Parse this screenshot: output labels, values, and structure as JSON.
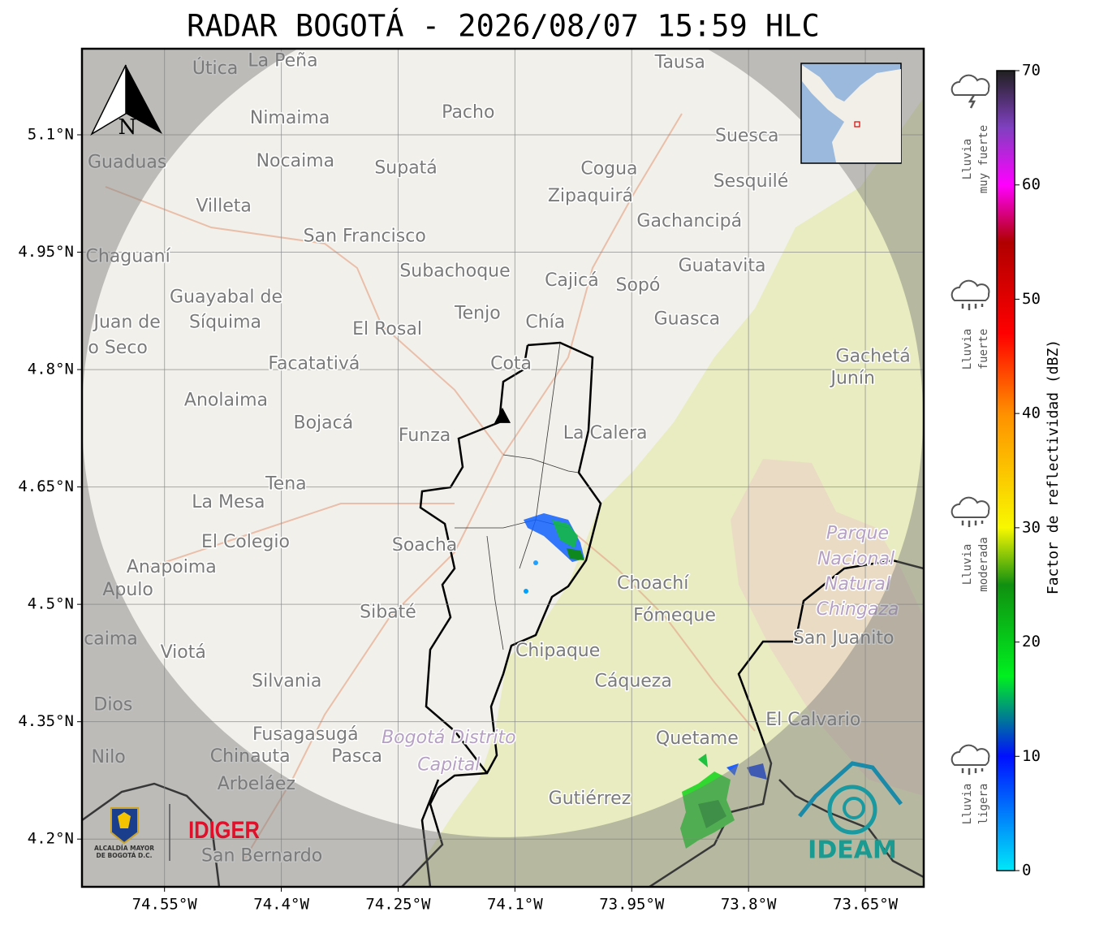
{
  "title": "RADAR BOGOTÁ - 2026/08/07 15:59 HLC",
  "map": {
    "lonlim": [
      -74.656,
      -73.575
    ],
    "latlim": [
      4.139,
      5.21
    ],
    "grid": true,
    "north_label": "N",
    "lat_ticks": [
      {
        "value": 5.1,
        "label": "5.1°N"
      },
      {
        "value": 4.95,
        "label": "4.95°N"
      },
      {
        "value": 4.8,
        "label": "4.8°N"
      },
      {
        "value": 4.65,
        "label": "4.65°N"
      },
      {
        "value": 4.5,
        "label": "4.5°N"
      },
      {
        "value": 4.35,
        "label": "4.35°N"
      },
      {
        "value": 4.2,
        "label": "4.2°N"
      }
    ],
    "lon_ticks": [
      {
        "value": -74.55,
        "label": "74.55°W"
      },
      {
        "value": -74.4,
        "label": "74.4°W"
      },
      {
        "value": -74.25,
        "label": "74.25°W"
      },
      {
        "value": -74.1,
        "label": "74.1°W"
      },
      {
        "value": -73.95,
        "label": "73.95°W"
      },
      {
        "value": -73.8,
        "label": "73.8°W"
      },
      {
        "value": -73.65,
        "label": "73.65°W"
      }
    ],
    "radar_site": {
      "lon": -74.116,
      "lat": 4.74
    },
    "places": [
      {
        "name": "Útica",
        "lon": -74.485,
        "lat": 5.184
      },
      {
        "name": "La Peña",
        "lon": -74.398,
        "lat": 5.194
      },
      {
        "name": "Tausa",
        "lon": -73.888,
        "lat": 5.192
      },
      {
        "name": "Pacho",
        "lon": -74.16,
        "lat": 5.128
      },
      {
        "name": "Nimaima",
        "lon": -74.389,
        "lat": 5.121
      },
      {
        "name": "Guaduas",
        "lon": -74.598,
        "lat": 5.064
      },
      {
        "name": "Nocaima",
        "lon": -74.382,
        "lat": 5.066
      },
      {
        "name": "Supatá",
        "lon": -74.24,
        "lat": 5.057
      },
      {
        "name": "Cogua",
        "lon": -73.979,
        "lat": 5.056
      },
      {
        "name": "Suesca",
        "lon": -73.802,
        "lat": 5.098
      },
      {
        "name": "Sesquilé",
        "lon": -73.797,
        "lat": 5.04
      },
      {
        "name": "Zipaquirá",
        "lon": -74.003,
        "lat": 5.021
      },
      {
        "name": "Villeta",
        "lon": -74.474,
        "lat": 5.008
      },
      {
        "name": "Gachancipá",
        "lon": -73.876,
        "lat": 4.989
      },
      {
        "name": "San Francisco",
        "lon": -74.293,
        "lat": 4.97
      },
      {
        "name": "Chaguaní",
        "lon": -74.597,
        "lat": 4.944
      },
      {
        "name": "Guatavita",
        "lon": -73.834,
        "lat": 4.932
      },
      {
        "name": "Subachoque",
        "lon": -74.177,
        "lat": 4.925
      },
      {
        "name": "Cajicá",
        "lon": -74.027,
        "lat": 4.913
      },
      {
        "name": "Sopó",
        "lon": -73.942,
        "lat": 4.907
      },
      {
        "name": "Guayabal de",
        "lon": -74.471,
        "lat": 4.892
      },
      {
        "name": "Síquima",
        "lon": -74.472,
        "lat": 4.86
      },
      {
        "name": "Juan de",
        "lon": -74.598,
        "lat": 4.86
      },
      {
        "name": "o Seco",
        "lon": -74.61,
        "lat": 4.827
      },
      {
        "name": "Tenjo",
        "lon": -74.148,
        "lat": 4.871
      },
      {
        "name": "Chía",
        "lon": -74.061,
        "lat": 4.86
      },
      {
        "name": "El Rosal",
        "lon": -74.264,
        "lat": 4.851
      },
      {
        "name": "Guasca",
        "lon": -73.879,
        "lat": 4.864
      },
      {
        "name": "Facatativá",
        "lon": -74.358,
        "lat": 4.807
      },
      {
        "name": "Cota",
        "lon": -74.105,
        "lat": 4.807
      },
      {
        "name": "Gachetá",
        "lon": -73.64,
        "lat": 4.816
      },
      {
        "name": "Junín",
        "lon": -73.666,
        "lat": 4.788
      },
      {
        "name": "Anolaima",
        "lon": -74.471,
        "lat": 4.76
      },
      {
        "name": "Bojacá",
        "lon": -74.346,
        "lat": 4.731
      },
      {
        "name": "Funza",
        "lon": -74.216,
        "lat": 4.715
      },
      {
        "name": "La Calera",
        "lon": -73.984,
        "lat": 4.718
      },
      {
        "name": "Tena",
        "lon": -74.394,
        "lat": 4.653
      },
      {
        "name": "La Mesa",
        "lon": -74.468,
        "lat": 4.63
      },
      {
        "name": "Parque",
        "lon": -73.66,
        "lat": 4.59,
        "italic": true
      },
      {
        "name": "Nacional",
        "lon": -73.662,
        "lat": 4.557,
        "italic": true
      },
      {
        "name": "Natural",
        "lon": -73.66,
        "lat": 4.525,
        "italic": true
      },
      {
        "name": "Chingaza",
        "lon": -73.66,
        "lat": 4.493,
        "italic": true
      },
      {
        "name": "El Colegio",
        "lon": -74.446,
        "lat": 4.579
      },
      {
        "name": "Soacha",
        "lon": -74.216,
        "lat": 4.575
      },
      {
        "name": "Anapoima",
        "lon": -74.541,
        "lat": 4.547
      },
      {
        "name": "Apulo",
        "lon": -74.597,
        "lat": 4.518
      },
      {
        "name": "Choachí",
        "lon": -73.923,
        "lat": 4.526
      },
      {
        "name": "Fómeque",
        "lon": -73.895,
        "lat": 4.485
      },
      {
        "name": "Sibaté",
        "lon": -74.263,
        "lat": 4.489
      },
      {
        "name": "San Juanito",
        "lon": -73.678,
        "lat": 4.456
      },
      {
        "name": "caima",
        "lon": -74.619,
        "lat": 4.455
      },
      {
        "name": "Viotá",
        "lon": -74.526,
        "lat": 4.438
      },
      {
        "name": "Chipaque",
        "lon": -74.045,
        "lat": 4.44
      },
      {
        "name": "Silvania",
        "lon": -74.393,
        "lat": 4.401
      },
      {
        "name": "Cáqueza",
        "lon": -73.948,
        "lat": 4.401
      },
      {
        "name": "Dios",
        "lon": -74.616,
        "lat": 4.371
      },
      {
        "name": "El Calvario",
        "lon": -73.717,
        "lat": 4.352
      },
      {
        "name": "Fusagasugá",
        "lon": -74.369,
        "lat": 4.333
      },
      {
        "name": "Quetame",
        "lon": -73.866,
        "lat": 4.328
      },
      {
        "name": "Bogotá Distrito",
        "lon": -74.185,
        "lat": 4.329,
        "italic": true
      },
      {
        "name": "Capital",
        "lon": -74.185,
        "lat": 4.294,
        "italic": true
      },
      {
        "name": "Nilo",
        "lon": -74.622,
        "lat": 4.304
      },
      {
        "name": "Chinauta",
        "lon": -74.44,
        "lat": 4.305
      },
      {
        "name": "Pasca",
        "lon": -74.303,
        "lat": 4.305
      },
      {
        "name": "Arbeláez",
        "lon": -74.432,
        "lat": 4.27
      },
      {
        "name": "Gutiérrez",
        "lon": -74.004,
        "lat": 4.251
      },
      {
        "name": "San Bernardo",
        "lon": -74.425,
        "lat": 4.178
      }
    ]
  },
  "colorbar": {
    "label": "Factor de reflectividad (dBZ)",
    "lim": [
      0,
      70
    ],
    "ticks": [
      0,
      10,
      20,
      30,
      40,
      50,
      60,
      70
    ],
    "stops": [
      {
        "value": 0,
        "color": "#00e8f8"
      },
      {
        "value": 10,
        "color": "#0010ff"
      },
      {
        "value": 17,
        "color": "#00f020"
      },
      {
        "value": 25,
        "color": "#109010"
      },
      {
        "value": 30,
        "color": "#f8f800"
      },
      {
        "value": 40,
        "color": "#ff9000"
      },
      {
        "value": 47,
        "color": "#ff0000"
      },
      {
        "value": 55,
        "color": "#b00000"
      },
      {
        "value": 60,
        "color": "#ff00ff"
      },
      {
        "value": 65,
        "color": "#8040c0"
      },
      {
        "value": 70,
        "color": "#202020"
      }
    ],
    "categories": [
      [
        "Lluvia",
        "muy fuerte"
      ],
      [
        "Lluvia",
        "fuerte"
      ],
      [
        "Lluvia",
        "moderada"
      ],
      [
        "Lluvia",
        "ligera"
      ]
    ]
  },
  "logos": {
    "alcaldia": [
      "ALCALDÍA MAYOR",
      "DE BOGOTÁ D.C."
    ],
    "idiger": "IDIGER",
    "ideam": "IDEAM"
  }
}
